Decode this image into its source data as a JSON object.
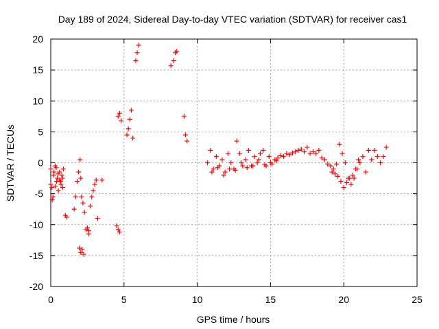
{
  "chart_data": {
    "type": "scatter",
    "title": "Day 189 of 2024, Sidereal Day-to-day VTEC variation (SDTVAR) for receiver cas1",
    "xlabel": "GPS time / hours",
    "ylabel": "SDTVAR / TECUs",
    "xlim": [
      0,
      25
    ],
    "ylim": [
      -20,
      20
    ],
    "xticks": [
      0,
      5,
      10,
      15,
      20,
      25
    ],
    "yticks": [
      -20,
      -15,
      -10,
      -5,
      0,
      5,
      10,
      15,
      20
    ],
    "grid": true,
    "legend": "none",
    "marker": "+",
    "colors": {
      "series": "#ff0000",
      "grid": "#a0a0a0",
      "axis": "#000000"
    },
    "series": [
      {
        "name": "SDTVAR",
        "segments": [
          {
            "x": [
              0.0,
              0.08,
              0.15,
              0.22,
              0.3,
              0.37,
              0.45,
              0.52,
              0.6,
              0.67,
              0.75,
              0.82,
              0.86
            ],
            "y": [
              -1.0,
              -4.0,
              -5.5,
              -1.5,
              -3.8,
              -0.8,
              -2.5,
              -4.5,
              -1.5,
              -3.0,
              -2.0,
              -4.0,
              -1.0
            ]
          },
          {
            "x": [
              0.0,
              0.1,
              0.2,
              0.3,
              0.4,
              0.5,
              0.6,
              0.7,
              0.8
            ],
            "y": [
              -3.5,
              -6.0,
              -2.0,
              -0.5,
              -3.0,
              -1.8,
              -2.8,
              -3.5,
              -2.5
            ]
          },
          {
            "x": [
              1.0,
              1.1
            ],
            "y": [
              -8.5,
              -8.8
            ]
          },
          {
            "x": [
              1.6,
              1.7,
              1.8,
              1.9,
              2.0,
              2.05,
              2.1,
              2.2,
              2.3
            ],
            "y": [
              -7.5,
              -5.5,
              -3.0,
              -1.5,
              0.5,
              -2.5,
              -5.5,
              -6.5,
              -8.0
            ]
          },
          {
            "x": [
              1.95,
              2.05,
              2.15,
              2.25
            ],
            "y": [
              -13.8,
              -14.5,
              -14.0,
              -14.8
            ]
          },
          {
            "x": [
              2.5,
              2.6,
              2.7,
              2.8,
              2.9,
              3.0,
              3.1
            ],
            "y": [
              -10.5,
              -11.0,
              -7.0,
              -5.5,
              -4.5,
              -3.5,
              -2.8
            ]
          },
          {
            "x": [
              2.4,
              2.6
            ],
            "y": [
              -10.8,
              -11.5
            ]
          },
          {
            "x": [
              3.2,
              3.5
            ],
            "y": [
              -9.0,
              -2.8
            ]
          },
          {
            "x": [
              4.5,
              4.6,
              4.7
            ],
            "y": [
              -10.2,
              -10.8,
              -11.2
            ]
          },
          {
            "x": [
              4.6,
              4.7,
              4.8
            ],
            "y": [
              7.5,
              8.0,
              6.8
            ]
          },
          {
            "x": [
              5.2,
              5.3,
              5.4,
              5.5,
              5.6
            ],
            "y": [
              4.5,
              5.5,
              7.0,
              8.5,
              4.0
            ]
          },
          {
            "x": [
              5.8,
              5.9,
              6.0
            ],
            "y": [
              16.5,
              17.8,
              19.0
            ]
          },
          {
            "x": [
              8.2,
              8.4,
              8.5,
              8.6
            ],
            "y": [
              15.7,
              16.5,
              17.8,
              18.0
            ]
          },
          {
            "x": [
              9.1,
              9.2,
              9.3
            ],
            "y": [
              7.5,
              4.5,
              3.5
            ]
          },
          {
            "x": [
              10.7,
              10.9,
              11.1,
              11.3,
              11.5,
              11.7,
              11.9,
              12.1,
              12.3,
              12.5,
              12.7,
              12.9,
              13.1,
              13.3,
              13.5,
              13.7,
              13.9,
              14.1,
              14.3,
              14.5,
              14.7,
              14.9,
              15.1,
              15.3,
              15.5,
              15.7,
              15.9,
              16.1,
              16.3,
              16.5,
              16.7,
              16.9,
              17.1,
              17.3,
              17.5,
              17.7,
              17.9,
              18.1,
              18.3,
              18.5,
              18.7,
              18.9,
              19.1,
              19.3,
              19.5,
              19.7,
              19.9,
              20.1,
              20.3,
              20.5,
              20.7,
              20.9,
              21.1,
              21.3,
              21.5,
              21.7,
              21.9,
              22.1,
              22.3,
              22.5,
              22.7,
              22.9
            ],
            "y": [
              0.0,
              2.0,
              -1.0,
              1.0,
              -0.5,
              0.5,
              -1.5,
              1.5,
              0.0,
              -1.0,
              3.5,
              1.5,
              -0.5,
              0.5,
              2.0,
              -0.5,
              1.0,
              0.0,
              1.5,
              2.0,
              -0.5,
              1.0,
              -0.2,
              0.5,
              0.8,
              1.2,
              1.0,
              1.5,
              1.3,
              1.6,
              1.8,
              2.0,
              2.2,
              1.8,
              2.5,
              1.5,
              1.8,
              1.5,
              2.0,
              0.8,
              0.5,
              -0.2,
              -0.5,
              -1.0,
              -0.2,
              3.0,
              1.5,
              0.0,
              -2.5,
              -3.5,
              -2.5,
              -1.0,
              0.0,
              1.0,
              -1.5,
              2.0,
              0.5,
              2.0,
              1.0,
              0.0,
              1.0,
              2.5
            ]
          },
          {
            "x": [
              11.0,
              11.4,
              11.8,
              12.2,
              12.6,
              13.0,
              13.4,
              13.8,
              14.2,
              14.6,
              15.0,
              15.4
            ],
            "y": [
              -1.5,
              -0.8,
              -2.0,
              -1.0,
              -1.2,
              0.0,
              -0.8,
              -0.5,
              0.5,
              -0.3,
              0.0,
              0.3
            ]
          },
          {
            "x": [
              19.2,
              19.4,
              19.6,
              19.8,
              20.0,
              20.2,
              20.4,
              20.6,
              20.8,
              21.0
            ],
            "y": [
              -1.5,
              -1.8,
              -2.2,
              -3.0,
              -4.0,
              -3.2,
              -2.5,
              -2.0,
              -1.0,
              0.5
            ]
          }
        ]
      }
    ]
  }
}
